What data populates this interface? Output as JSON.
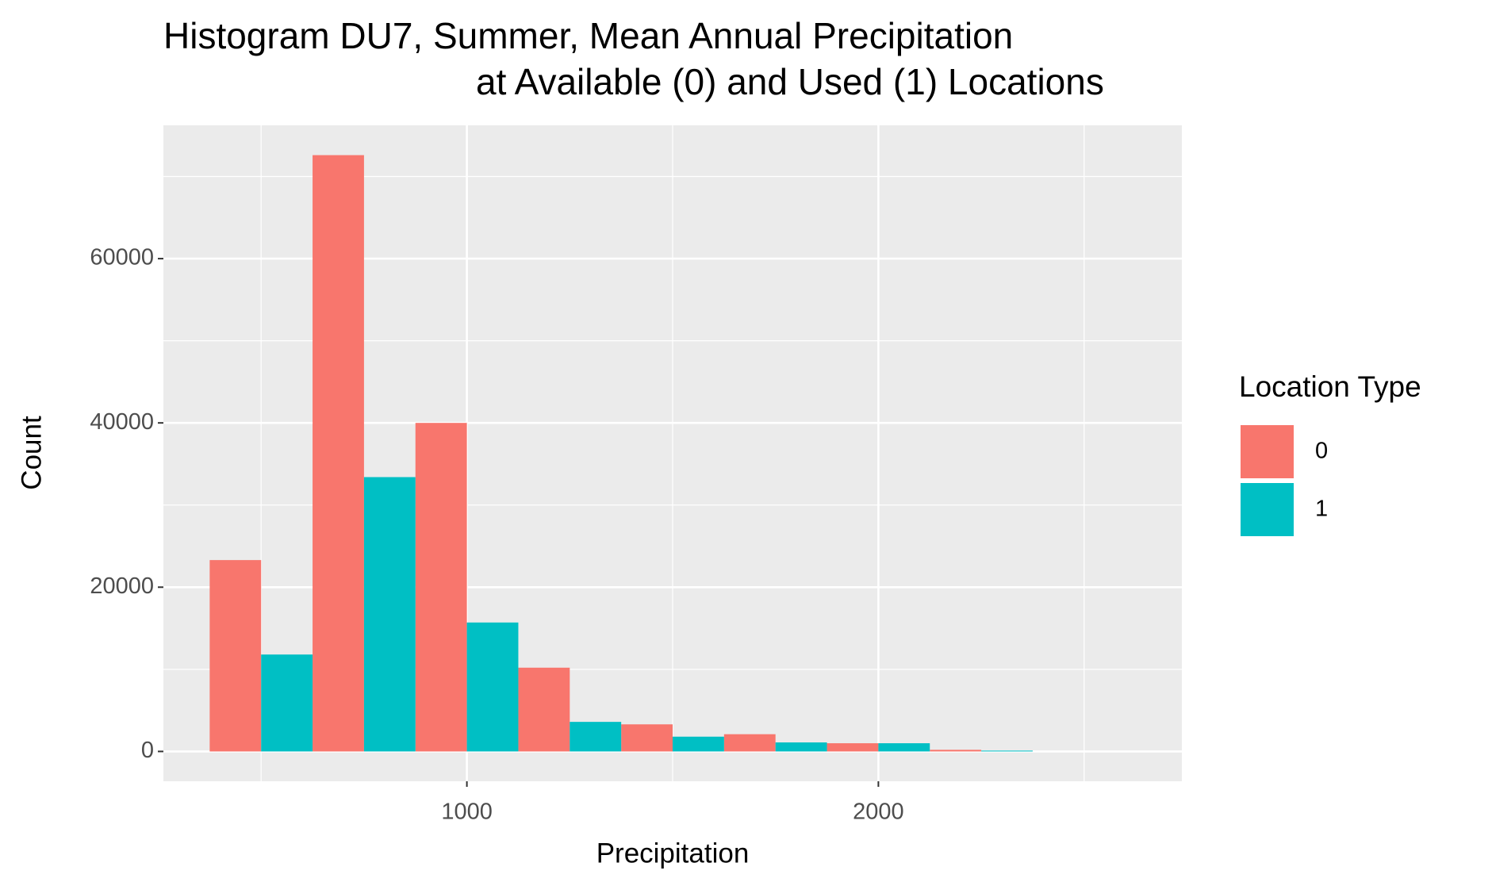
{
  "chart_data": {
    "type": "histogram",
    "title": [
      "Histogram DU7, Summer, Mean Annual Precipitation",
      "at Available (0) and Used (1) Locations"
    ],
    "x_label": "Precipitation",
    "y_label": "Count",
    "legend_title": "Location Type",
    "legend_position": "right",
    "bins": [
      375,
      625,
      875,
      1125,
      1375,
      1625,
      1875,
      2125,
      2375,
      2625
    ],
    "series": [
      {
        "name": "0",
        "color": "#f8766d",
        "values": [
          23300,
          72600,
          40000,
          10200,
          3300,
          2100,
          1000,
          200,
          0
        ]
      },
      {
        "name": "1",
        "color": "#00bfc4",
        "values": [
          11800,
          33400,
          15700,
          3600,
          1800,
          1100,
          1000,
          100,
          0
        ]
      }
    ],
    "xlim": [
      262.5,
      2737.5
    ],
    "xticks": [
      1000,
      2000
    ],
    "ylim": [
      -3630,
      76230
    ],
    "yticks": [
      0,
      20000,
      40000,
      60000
    ],
    "grid": true
  }
}
